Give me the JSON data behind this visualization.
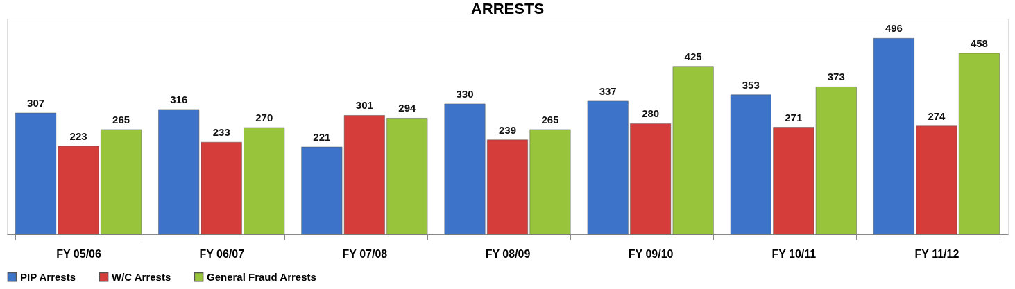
{
  "chart_data": {
    "type": "bar",
    "title": "ARRESTS",
    "categories": [
      "FY 05/06",
      "FY 06/07",
      "FY 07/08",
      "FY 08/09",
      "FY 09/10",
      "FY 10/11",
      "FY 11/12"
    ],
    "series": [
      {
        "name": "PIP Arrests",
        "color": "#3d74c9",
        "values": [
          307,
          316,
          221,
          330,
          337,
          353,
          496
        ]
      },
      {
        "name": "W/C Arrests",
        "color": "#d43d3a",
        "values": [
          223,
          233,
          301,
          239,
          280,
          271,
          274
        ]
      },
      {
        "name": "General Fraud Arrests",
        "color": "#98c43c",
        "values": [
          265,
          270,
          294,
          265,
          425,
          373,
          458
        ]
      }
    ],
    "data_labels": true,
    "legend": "bottom",
    "grid": false
  }
}
